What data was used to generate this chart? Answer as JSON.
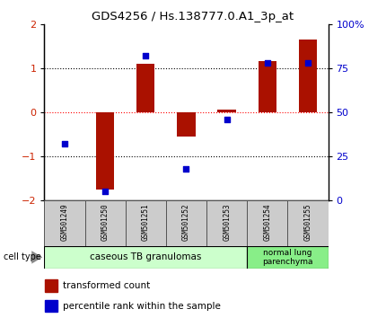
{
  "title": "GDS4256 / Hs.138777.0.A1_3p_at",
  "samples": [
    "GSM501249",
    "GSM501250",
    "GSM501251",
    "GSM501252",
    "GSM501253",
    "GSM501254",
    "GSM501255"
  ],
  "transformed_count": [
    0.0,
    -1.75,
    1.1,
    -0.55,
    0.05,
    1.15,
    1.65
  ],
  "percentile_rank": [
    32,
    5,
    82,
    18,
    46,
    78,
    78
  ],
  "bar_color": "#aa1100",
  "dot_color": "#0000cc",
  "ylim_left": [
    -2,
    2
  ],
  "ylim_right": [
    0,
    100
  ],
  "yticks_left": [
    -2,
    -1,
    0,
    1,
    2
  ],
  "yticks_right": [
    0,
    25,
    50,
    75,
    100
  ],
  "yticklabels_right": [
    "0",
    "25",
    "50",
    "75",
    "100%"
  ],
  "hline_y": [
    1,
    0,
    -1
  ],
  "hline_colors": [
    "black",
    "red",
    "black"
  ],
  "hline_styles": [
    "dotted",
    "dotted",
    "dotted"
  ],
  "group1_label": "caseous TB granulomas",
  "group2_label": "normal lung\nparenchyma",
  "group1_color": "#ccffcc",
  "group2_color": "#88ee88",
  "cell_type_label": "cell type",
  "legend_bar_label": "transformed count",
  "legend_dot_label": "percentile rank within the sample",
  "tick_color_left": "#cc2200",
  "tick_color_right": "#0000cc",
  "bg_color": "#ffffff",
  "label_bg_color": "#cccccc",
  "bar_width": 0.45
}
